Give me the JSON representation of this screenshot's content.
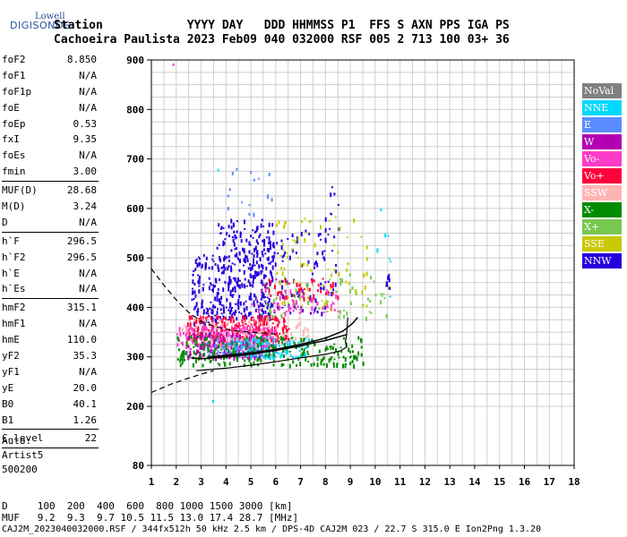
{
  "logo": {
    "line1": "Lowell",
    "line2": "DIGISONDE"
  },
  "header": {
    "row1": "Station            YYYY DAY   DDD HHMMSS P1  FFS S AXN PPS IGA PS",
    "row2": "Cachoeira Paulista 2023 Feb09 040 032000 RSF 005 2 713 100 03+ 36"
  },
  "params": [
    {
      "label": "foF2",
      "value": "8.850"
    },
    {
      "label": "foF1",
      "value": "N/A"
    },
    {
      "label": "foF1p",
      "value": "N/A"
    },
    {
      "label": "foE",
      "value": "N/A"
    },
    {
      "label": "foEp",
      "value": "0.53"
    },
    {
      "label": "fxI",
      "value": "9.35"
    },
    {
      "label": "foEs",
      "value": "N/A"
    },
    {
      "label": "fmin",
      "value": "3.00"
    },
    {
      "label": "MUF(D)",
      "value": "28.68"
    },
    {
      "label": "M(D)",
      "value": "3.24"
    },
    {
      "label": "D",
      "value": "N/A"
    },
    {
      "label": "h`F",
      "value": "296.5"
    },
    {
      "label": "h`F2",
      "value": "296.5"
    },
    {
      "label": "h`E",
      "value": "N/A"
    },
    {
      "label": "h`Es",
      "value": "N/A"
    },
    {
      "label": "hmF2",
      "value": "315.1"
    },
    {
      "label": "hmF1",
      "value": "N/A"
    },
    {
      "label": "hmE",
      "value": "110.0"
    },
    {
      "label": "yF2",
      "value": "35.3"
    },
    {
      "label": "yF1",
      "value": "N/A"
    },
    {
      "label": "yE",
      "value": "20.0"
    },
    {
      "label": "B0",
      "value": "40.1"
    },
    {
      "label": "B1",
      "value": "1.26"
    },
    {
      "label": "C-level",
      "value": "22"
    }
  ],
  "auto": {
    "line1": "Auto:",
    "line2": "Artist5",
    "line3": "500200"
  },
  "legend": [
    {
      "label": "NoVal",
      "color": "#808080"
    },
    {
      "label": "NNE",
      "color": "#00d7ff"
    },
    {
      "label": "E",
      "color": "#5a8cff"
    },
    {
      "label": "W",
      "color": "#b400b4"
    },
    {
      "label": "Vo-",
      "color": "#ff3cc8"
    },
    {
      "label": "Vo+",
      "color": "#ff003c"
    },
    {
      "label": "SSW",
      "color": "#ffb4b4"
    },
    {
      "label": "X-",
      "color": "#008c00"
    },
    {
      "label": "X+",
      "color": "#78c850"
    },
    {
      "label": "SSE",
      "color": "#c8c800"
    },
    {
      "label": "NNW",
      "color": "#2800dc"
    }
  ],
  "footer": {
    "row1": "D     100  200  400  600  800 1000 1500 3000 [km]",
    "row2": "MUF   9.2  9.3  9.7 10.5 11.5 13.0 17.4 28.7 [MHz]",
    "row3": "CAJ2M_2023040032000.RSF / 344fx512h 50 kHz 2.5 km / DPS-4D CAJ2M 023 / 22.7 S 315.0 E Ion2Png 1.3.20"
  },
  "chart_data": {
    "type": "scatter",
    "xlim": [
      1,
      18
    ],
    "ylim": [
      80,
      900
    ],
    "xticks": [
      "1",
      "2",
      "3",
      "4",
      "5",
      "6",
      "7",
      "8",
      "9",
      "10",
      "11",
      "12",
      "13",
      "14",
      "15",
      "16",
      "17",
      "18"
    ],
    "yticks": [
      {
        "value": 80,
        "label": "80"
      },
      {
        "value": 200,
        "label": "200"
      },
      {
        "value": 300,
        "label": "300"
      },
      {
        "value": 400,
        "label": "400"
      },
      {
        "value": 500,
        "label": "500"
      },
      {
        "value": 600,
        "label": "600"
      },
      {
        "value": 700,
        "label": "700"
      },
      {
        "value": 800,
        "label": "800"
      },
      {
        "value": 900,
        "label": "900"
      }
    ],
    "traces": {
      "o_trace": [
        [
          2.6,
          298
        ],
        [
          3,
          296
        ],
        [
          4,
          300
        ],
        [
          5,
          305
        ],
        [
          6,
          313
        ],
        [
          7,
          322
        ],
        [
          7.5,
          328
        ],
        [
          8,
          333
        ],
        [
          8.5,
          340
        ],
        [
          8.85,
          345
        ]
      ],
      "x_trace": [
        [
          3.3,
          300
        ],
        [
          4,
          303
        ],
        [
          5,
          308
        ],
        [
          6,
          315
        ],
        [
          7,
          325
        ],
        [
          8,
          338
        ],
        [
          8.7,
          352
        ],
        [
          9.1,
          368
        ],
        [
          9.3,
          380
        ]
      ],
      "profile": [
        [
          2.8,
          272
        ],
        [
          4,
          277
        ],
        [
          5,
          283
        ],
        [
          6,
          290
        ],
        [
          7,
          298
        ],
        [
          8,
          305
        ],
        [
          8.6,
          312
        ],
        [
          8.85,
          320
        ],
        [
          8.8,
          330
        ],
        [
          8.85,
          345
        ],
        [
          8.9,
          380
        ]
      ],
      "profile_dashed_top": [
        [
          1,
          478
        ],
        [
          1.5,
          445
        ],
        [
          2,
          415
        ],
        [
          2.5,
          390
        ],
        [
          3,
          372
        ],
        [
          3.5,
          362
        ],
        [
          4,
          356
        ],
        [
          4.5,
          352
        ],
        [
          5,
          350
        ],
        [
          5.5,
          348
        ],
        [
          6,
          346
        ]
      ],
      "profile_dashed_bottom": [
        [
          1,
          228
        ],
        [
          1.8,
          245
        ],
        [
          2.5,
          257
        ],
        [
          3,
          265
        ],
        [
          3.5,
          272
        ]
      ]
    },
    "clusters": [
      {
        "color": "#2800dc",
        "xr": [
          3.6,
          5.9
        ],
        "yr": [
          380,
          580
        ],
        "n": 340
      },
      {
        "color": "#2800dc",
        "xr": [
          2.6,
          3.6
        ],
        "yr": [
          340,
          510
        ],
        "n": 120
      },
      {
        "color": "#2800dc",
        "xr": [
          5.9,
          8.4
        ],
        "yr": [
          390,
          560
        ],
        "n": 90
      },
      {
        "color": "#2800dc",
        "xr": [
          7.9,
          8.6
        ],
        "yr": [
          560,
          665
        ],
        "n": 10
      },
      {
        "color": "#ff003c",
        "xr": [
          2.4,
          6.5
        ],
        "yr": [
          335,
          385
        ],
        "n": 260
      },
      {
        "color": "#ff3cc8",
        "xr": [
          2.0,
          6.0
        ],
        "yr": [
          320,
          365
        ],
        "n": 200
      },
      {
        "color": "#ffb4b4",
        "xr": [
          2.2,
          7.5
        ],
        "yr": [
          325,
          380
        ],
        "n": 120
      },
      {
        "color": "#b400b4",
        "xr": [
          2.3,
          5.5
        ],
        "yr": [
          300,
          350
        ],
        "n": 160
      },
      {
        "color": "#5a8cff",
        "xr": [
          3.2,
          6.0
        ],
        "yr": [
          305,
          345
        ],
        "n": 90
      },
      {
        "color": "#00d7ff",
        "xr": [
          4.3,
          7.3
        ],
        "yr": [
          300,
          340
        ],
        "n": 110
      },
      {
        "color": "#008c00",
        "xr": [
          2.0,
          9.5
        ],
        "yr": [
          285,
          345
        ],
        "n": 220
      },
      {
        "color": "#78c850",
        "xr": [
          5.5,
          10.5
        ],
        "yr": [
          380,
          470
        ],
        "n": 70
      },
      {
        "color": "#c8c800",
        "xr": [
          6.0,
          9.7
        ],
        "yr": [
          400,
          585
        ],
        "n": 80
      },
      {
        "color": "#ff3cc8",
        "xr": [
          5.0,
          8.5
        ],
        "yr": [
          390,
          440
        ],
        "n": 60
      },
      {
        "color": "#ff003c",
        "xr": [
          5.5,
          8.5
        ],
        "yr": [
          420,
          460
        ],
        "n": 40
      },
      {
        "color": "#5a8cff",
        "xr": [
          4.0,
          6.0
        ],
        "yr": [
          590,
          690
        ],
        "n": 14
      },
      {
        "color": "#00d7ff",
        "xr": [
          10.0,
          10.6
        ],
        "yr": [
          420,
          560
        ],
        "n": 6
      },
      {
        "color": "#2800dc",
        "xr": [
          10.4,
          11.0
        ],
        "yr": [
          440,
          470
        ],
        "n": 8
      }
    ]
  }
}
